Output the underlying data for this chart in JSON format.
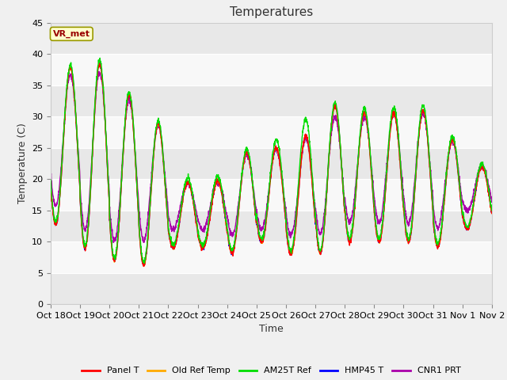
{
  "title": "Temperatures",
  "xlabel": "Time",
  "ylabel": "Temperature (C)",
  "annotation": "VR_met",
  "ylim": [
    0,
    45
  ],
  "xlim_start": 0,
  "xlim_end": 15,
  "xtick_labels": [
    "Oct 18",
    "Oct 19",
    "Oct 20",
    "Oct 21",
    "Oct 22",
    "Oct 23",
    "Oct 24",
    "Oct 25",
    "Oct 26",
    "Oct 27",
    "Oct 28",
    "Oct 29",
    "Oct 30",
    "Oct 31",
    "Nov 1",
    "Nov 2"
  ],
  "ytick_values": [
    0,
    5,
    10,
    15,
    20,
    25,
    30,
    35,
    40,
    45
  ],
  "legend_entries": [
    "Panel T",
    "Old Ref Temp",
    "AM25T Ref",
    "HMP45 T",
    "CNR1 PRT"
  ],
  "line_colors": [
    "#ff0000",
    "#ffaa00",
    "#00dd00",
    "#0000ff",
    "#aa00aa"
  ],
  "fig_facecolor": "#f0f0f0",
  "plot_facecolor": "#ffffff",
  "band_colors": [
    "#e8e8e8",
    "#f8f8f8"
  ],
  "title_fontsize": 11,
  "axis_fontsize": 9,
  "tick_fontsize": 8,
  "daily_peaks_base": [
    37,
    40,
    34,
    32,
    20,
    18,
    24,
    25,
    25,
    32,
    31,
    30,
    32,
    28,
    22
  ],
  "daily_mins_base": [
    13,
    9,
    7,
    6,
    9,
    9,
    8,
    10,
    8,
    8,
    10,
    10,
    10,
    9,
    12
  ],
  "daily_peaks_am25t": [
    37.5,
    40.5,
    34.5,
    32.5,
    20.5,
    19,
    24.5,
    25.5,
    28.5,
    32.5,
    31.5,
    31,
    33,
    28.5,
    22.5
  ],
  "daily_mins_am25t": [
    13.5,
    9.5,
    7.5,
    6.5,
    9.5,
    9.5,
    8.5,
    10.5,
    8.5,
    8.5,
    10.5,
    10.5,
    10.5,
    9.5,
    12.5
  ],
  "daily_peaks_cnr1": [
    36,
    38.5,
    33,
    31.5,
    20,
    18,
    23.5,
    24.5,
    25,
    30,
    30,
    30,
    31.5,
    27.5,
    22
  ],
  "daily_mins_cnr1": [
    16,
    12,
    10,
    10,
    12,
    12,
    11,
    12,
    11,
    11,
    13,
    13,
    13,
    12,
    15
  ]
}
